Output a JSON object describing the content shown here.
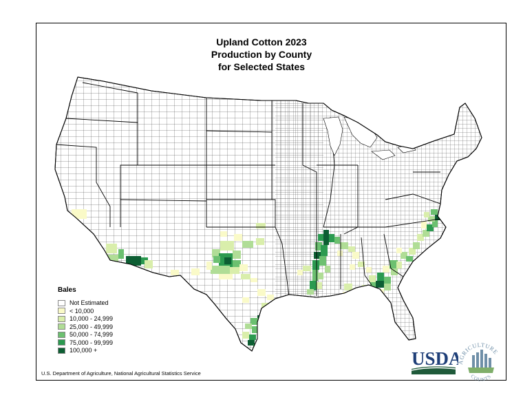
{
  "title_lines": [
    "Upland Cotton 2023",
    "Production by County",
    "for Selected States"
  ],
  "legend": {
    "title": "Bales",
    "items": [
      {
        "label": "Not Estimated",
        "color": "#ffffff"
      },
      {
        "label": "< 10,000",
        "color": "#fafac8"
      },
      {
        "label": "10,000 - 24,999",
        "color": "#d9eeab"
      },
      {
        "label": "25,000 - 49,999",
        "color": "#b0dd96"
      },
      {
        "label": "50,000 - 74,999",
        "color": "#6cc070"
      },
      {
        "label": "75,000 - 99,999",
        "color": "#2b9a50"
      },
      {
        "label": "100,000 +",
        "color": "#0d5e33"
      }
    ]
  },
  "source": "U.S. Department of Agriculture, National Agricultural Statistics Service",
  "logo": {
    "usda": "USDA",
    "agriculture": "AGRICULTURE",
    "counts": "COUNTS"
  }
}
